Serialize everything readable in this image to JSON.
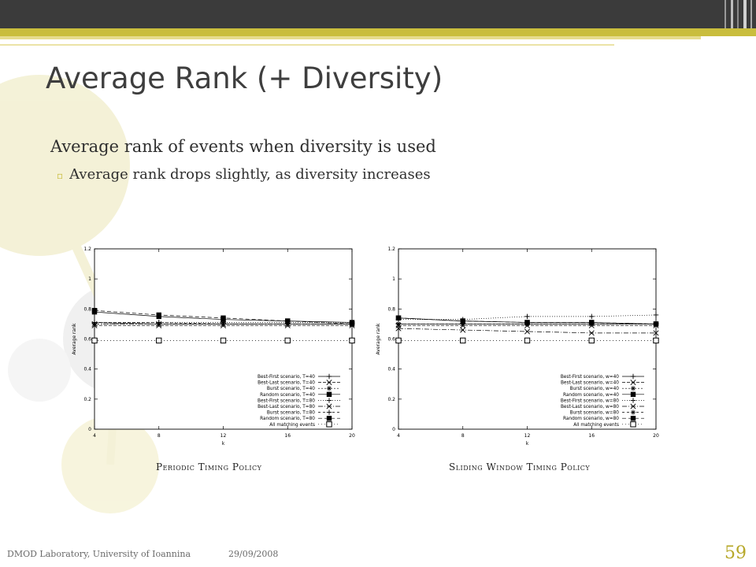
{
  "slide": {
    "title": "Average Rank (+ Diversity)",
    "bullet": "Average rank of events when diversity is used",
    "sub_bullet": "Average rank drops slightly, as diversity increases",
    "footer_left": "DMOD Laboratory, University of Ioannina",
    "footer_date": "29/09/2008",
    "page_number": "59"
  },
  "colors": {
    "accent": "#c9bd3d",
    "topbar": "#3b3b3b",
    "title": "#3e3e3e",
    "page_number": "#b7a82a"
  },
  "chart_data": [
    {
      "type": "line",
      "caption": "Periodic Timing Policy",
      "xlabel": "k",
      "ylabel": "Average rank",
      "x": [
        4,
        8,
        12,
        16,
        20
      ],
      "xticks": [
        "4",
        "8",
        "12",
        "16",
        "20"
      ],
      "yticks": [
        "0",
        "0.2",
        "0.4",
        "0.6",
        "0.8",
        "1",
        "1.2"
      ],
      "xlim": [
        4,
        20
      ],
      "ylim": [
        0,
        1.2
      ],
      "legend_position": "bottom-right",
      "series": [
        {
          "name": "Best-First scenario, T=40",
          "values": [
            0.71,
            0.7,
            0.7,
            0.7,
            0.7
          ],
          "marker": "+"
        },
        {
          "name": "Best-Last scenario, T=40",
          "values": [
            0.69,
            0.69,
            0.69,
            0.69,
            0.69
          ],
          "marker": "x"
        },
        {
          "name": "Burst scenario, T=40",
          "values": [
            0.7,
            0.7,
            0.7,
            0.7,
            0.7
          ],
          "marker": "*"
        },
        {
          "name": "Random scenario, T=40",
          "values": [
            0.78,
            0.75,
            0.73,
            0.72,
            0.71
          ],
          "marker": "fsq"
        },
        {
          "name": "Best-First scenario, T=80",
          "values": [
            0.71,
            0.71,
            0.71,
            0.71,
            0.71
          ],
          "marker": "+"
        },
        {
          "name": "Best-Last scenario, T=80",
          "values": [
            0.7,
            0.7,
            0.7,
            0.7,
            0.7
          ],
          "marker": "x"
        },
        {
          "name": "Burst scenario, T=80",
          "values": [
            0.71,
            0.71,
            0.7,
            0.7,
            0.7
          ],
          "marker": "+"
        },
        {
          "name": "Random scenario, T=80",
          "values": [
            0.79,
            0.76,
            0.74,
            0.72,
            0.7
          ],
          "marker": "fsq"
        },
        {
          "name": "All matching events",
          "values": [
            0.59,
            0.59,
            0.59,
            0.59,
            0.59
          ],
          "marker": "osq"
        }
      ]
    },
    {
      "type": "line",
      "caption": "Sliding Window Timing Policy",
      "xlabel": "k",
      "ylabel": "Average rank",
      "x": [
        4,
        8,
        12,
        16,
        20
      ],
      "xticks": [
        "4",
        "8",
        "12",
        "16",
        "20"
      ],
      "yticks": [
        "0",
        "0.2",
        "0.4",
        "0.6",
        "0.8",
        "1",
        "1.2"
      ],
      "xlim": [
        4,
        20
      ],
      "ylim": [
        0,
        1.2
      ],
      "legend_position": "bottom-right",
      "series": [
        {
          "name": "Best-First scenario, w=40",
          "values": [
            0.7,
            0.7,
            0.7,
            0.7,
            0.7
          ],
          "marker": "+"
        },
        {
          "name": "Best-Last scenario, w=40",
          "values": [
            0.69,
            0.69,
            0.69,
            0.69,
            0.69
          ],
          "marker": "x"
        },
        {
          "name": "Burst scenario, w=40",
          "values": [
            0.7,
            0.7,
            0.7,
            0.7,
            0.7
          ],
          "marker": "*"
        },
        {
          "name": "Random scenario, w=40",
          "values": [
            0.74,
            0.72,
            0.71,
            0.71,
            0.7
          ],
          "marker": "fsq"
        },
        {
          "name": "Best-First scenario, w=80",
          "values": [
            0.73,
            0.73,
            0.75,
            0.75,
            0.76
          ],
          "marker": "+"
        },
        {
          "name": "Best-Last scenario, w=80",
          "values": [
            0.67,
            0.66,
            0.65,
            0.64,
            0.64
          ],
          "marker": "x"
        },
        {
          "name": "Burst scenario, w=80",
          "values": [
            0.7,
            0.7,
            0.7,
            0.7,
            0.7
          ],
          "marker": "*"
        },
        {
          "name": "Random scenario, w=80",
          "values": [
            0.74,
            0.72,
            0.71,
            0.71,
            0.7
          ],
          "marker": "fsq"
        },
        {
          "name": "All matching events",
          "values": [
            0.59,
            0.59,
            0.59,
            0.59,
            0.59
          ],
          "marker": "osq"
        }
      ]
    }
  ]
}
